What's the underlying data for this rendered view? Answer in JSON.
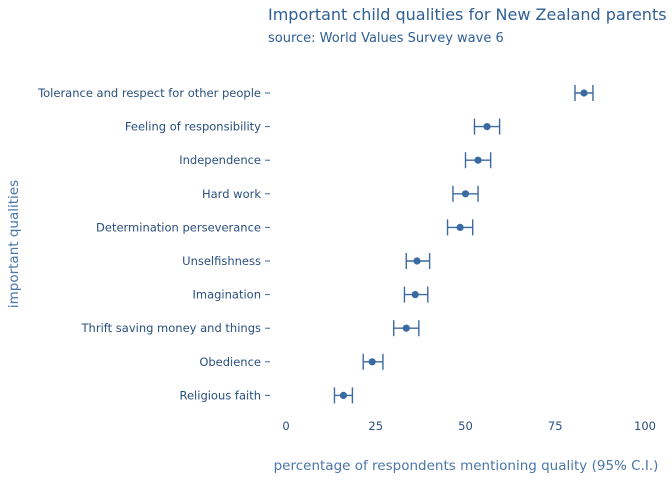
{
  "chart_data": {
    "type": "scatter",
    "title": "Important child qualities for New Zealand parents",
    "subtitle": "source: World Values Survey wave 6",
    "xlabel": "percentage of respondents mentioning quality (95% C.I.)",
    "ylabel": "important qualities",
    "xlim": [
      0,
      100
    ],
    "xticks": [
      "0",
      "25",
      "50",
      "75",
      "100"
    ],
    "grid": false,
    "marker_color": "#3b6aa0",
    "categories": [
      "Tolerance and respect for other people",
      "Feeling of responsibility",
      "Independence",
      "Hard work",
      "Determination perseverance",
      "Unselfishness",
      "Imagination",
      "Thrift saving money and things",
      "Obedience",
      "Religious faith"
    ],
    "values": [
      83,
      56,
      53.5,
      50,
      48.5,
      36.5,
      36,
      33.5,
      24,
      16
    ],
    "ci_low": [
      80.5,
      52.5,
      50,
      46.5,
      45,
      33.5,
      33,
      30,
      21.5,
      13.5
    ],
    "ci_high": [
      85.5,
      59.5,
      57,
      53.5,
      52,
      40,
      39.5,
      37,
      27,
      18.5
    ]
  }
}
